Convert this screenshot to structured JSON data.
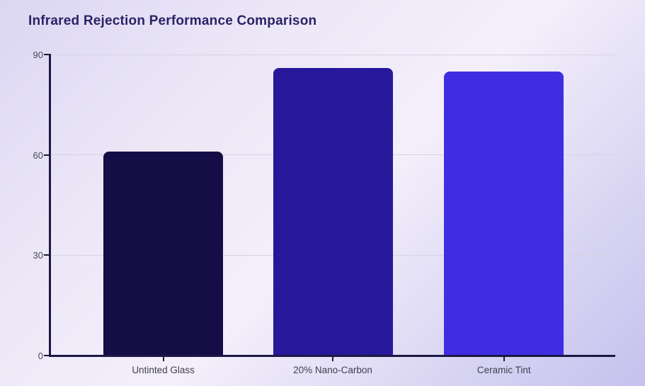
{
  "chart_data": {
    "type": "bar",
    "title": "Infrared Rejection Performance Comparison",
    "categories": [
      "Untinted Glass",
      "20% Nano-Carbon",
      "Ceramic Tint"
    ],
    "values": [
      61,
      86,
      85
    ],
    "bar_colors": [
      "#150d45",
      "#27189b",
      "#3f2de2"
    ],
    "xlabel": "",
    "ylabel": "",
    "ylim": [
      0,
      90
    ],
    "yticks": [
      0,
      30,
      60,
      90
    ],
    "grid": "horizontal-at-30-60-90",
    "legend": "none"
  },
  "colors": {
    "background_top_left": "#dbd6f2",
    "background_center": "#f4effb",
    "background_bottom_right": "#c4c2ee",
    "title": "#2b2365",
    "axis": "#1d1743",
    "gridline": "#d6d3e2",
    "ytick_label": "#4a4a58",
    "xtick_label": "#3e3e4e"
  }
}
